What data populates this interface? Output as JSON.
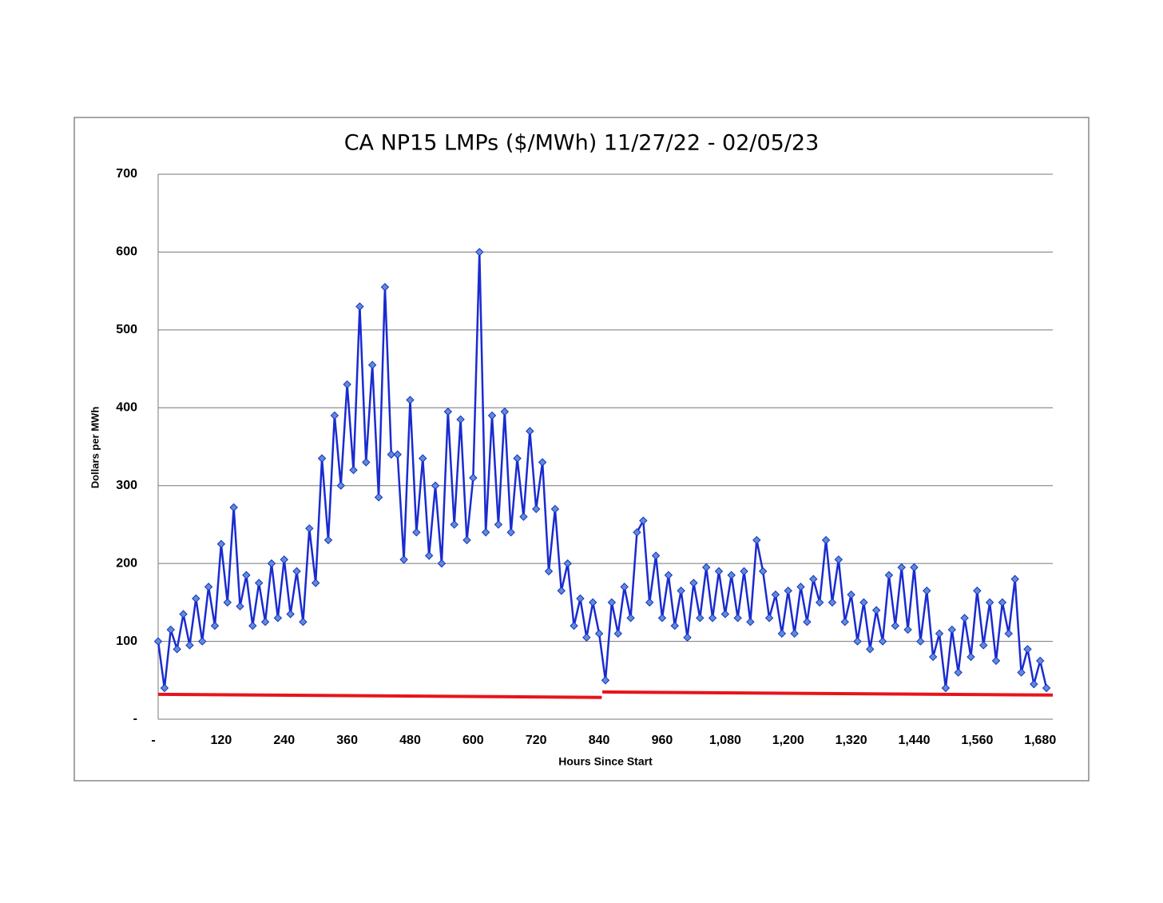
{
  "chart_data": {
    "type": "line",
    "title": "CA NP15 LMPs ($/MWh)   11/27/22 - 02/05/23",
    "x_label": "Hours Since Start",
    "y_label": "Dollars per MWh",
    "xlim": [
      0,
      1704
    ],
    "ylim": [
      0,
      700
    ],
    "xticks": [
      {
        "value": 0,
        "label": "-"
      },
      120,
      240,
      360,
      480,
      600,
      720,
      840,
      960,
      {
        "value": 1080,
        "label": "1,080"
      },
      {
        "value": 1200,
        "label": "1,200"
      },
      {
        "value": 1320,
        "label": "1,320"
      },
      {
        "value": 1440,
        "label": "1,440"
      },
      {
        "value": 1560,
        "label": "1,560"
      },
      {
        "value": 1680,
        "label": "1,680"
      }
    ],
    "yticks": [
      {
        "value": 0,
        "label": "-"
      },
      100,
      200,
      300,
      400,
      500,
      600,
      700
    ],
    "grid": true,
    "series": [
      {
        "color": "#1a2bd0",
        "marker": "diamond",
        "marker_color": "#5b8fd0",
        "x": [
          0,
          12,
          24,
          36,
          48,
          60,
          72,
          84,
          96,
          108,
          120,
          132,
          144,
          156,
          168,
          180,
          192,
          204,
          216,
          228,
          240,
          252,
          264,
          276,
          288,
          300,
          312,
          324,
          336,
          348,
          360,
          372,
          384,
          396,
          408,
          420,
          432,
          444,
          456,
          468,
          480,
          492,
          504,
          516,
          528,
          540,
          552,
          564,
          576,
          588,
          600,
          612,
          624,
          636,
          648,
          660,
          672,
          684,
          696,
          708,
          720,
          732,
          744,
          756,
          768,
          780,
          792,
          804,
          816,
          828,
          840,
          852,
          864,
          876,
          888,
          900,
          912,
          924,
          936,
          948,
          960,
          972,
          984,
          996,
          1008,
          1020,
          1032,
          1044,
          1056,
          1068,
          1080,
          1092,
          1104,
          1116,
          1128,
          1140,
          1152,
          1164,
          1176,
          1188,
          1200,
          1212,
          1224,
          1236,
          1248,
          1260,
          1272,
          1284,
          1296,
          1308,
          1320,
          1332,
          1344,
          1356,
          1368,
          1380,
          1392,
          1404,
          1416,
          1428,
          1440,
          1452,
          1464,
          1476,
          1488,
          1500,
          1512,
          1524,
          1536,
          1548,
          1560,
          1572,
          1584,
          1596,
          1608,
          1620,
          1632,
          1644,
          1656,
          1668,
          1680,
          1692
        ],
        "values": [
          100,
          40,
          115,
          90,
          135,
          95,
          155,
          100,
          170,
          120,
          225,
          150,
          272,
          145,
          185,
          120,
          175,
          125,
          200,
          130,
          205,
          135,
          190,
          125,
          245,
          175,
          335,
          230,
          390,
          300,
          430,
          320,
          530,
          330,
          455,
          285,
          555,
          340,
          340,
          205,
          410,
          240,
          335,
          210,
          300,
          200,
          395,
          250,
          385,
          230,
          310,
          600,
          240,
          390,
          250,
          395,
          240,
          335,
          260,
          370,
          270,
          330,
          190,
          270,
          165,
          200,
          120,
          155,
          105,
          150,
          110,
          50,
          150,
          110,
          170,
          130,
          240,
          255,
          150,
          210,
          130,
          185,
          120,
          165,
          105,
          175,
          130,
          195,
          130,
          190,
          135,
          185,
          130,
          190,
          125,
          230,
          190,
          130,
          160,
          110,
          165,
          110,
          170,
          125,
          180,
          150,
          230,
          150,
          205,
          125,
          160,
          100,
          150,
          90,
          140,
          100,
          185,
          120,
          195,
          115,
          195,
          100,
          165,
          80,
          110,
          40,
          115,
          60,
          130,
          80,
          165,
          95,
          150,
          75,
          150,
          110,
          180,
          60,
          90,
          45,
          75,
          40
        ]
      },
      {
        "color": "#e8141b",
        "x": [
          0,
          845,
          845,
          846,
          1704
        ],
        "values": [
          32,
          28,
          null,
          35,
          31
        ]
      }
    ]
  }
}
